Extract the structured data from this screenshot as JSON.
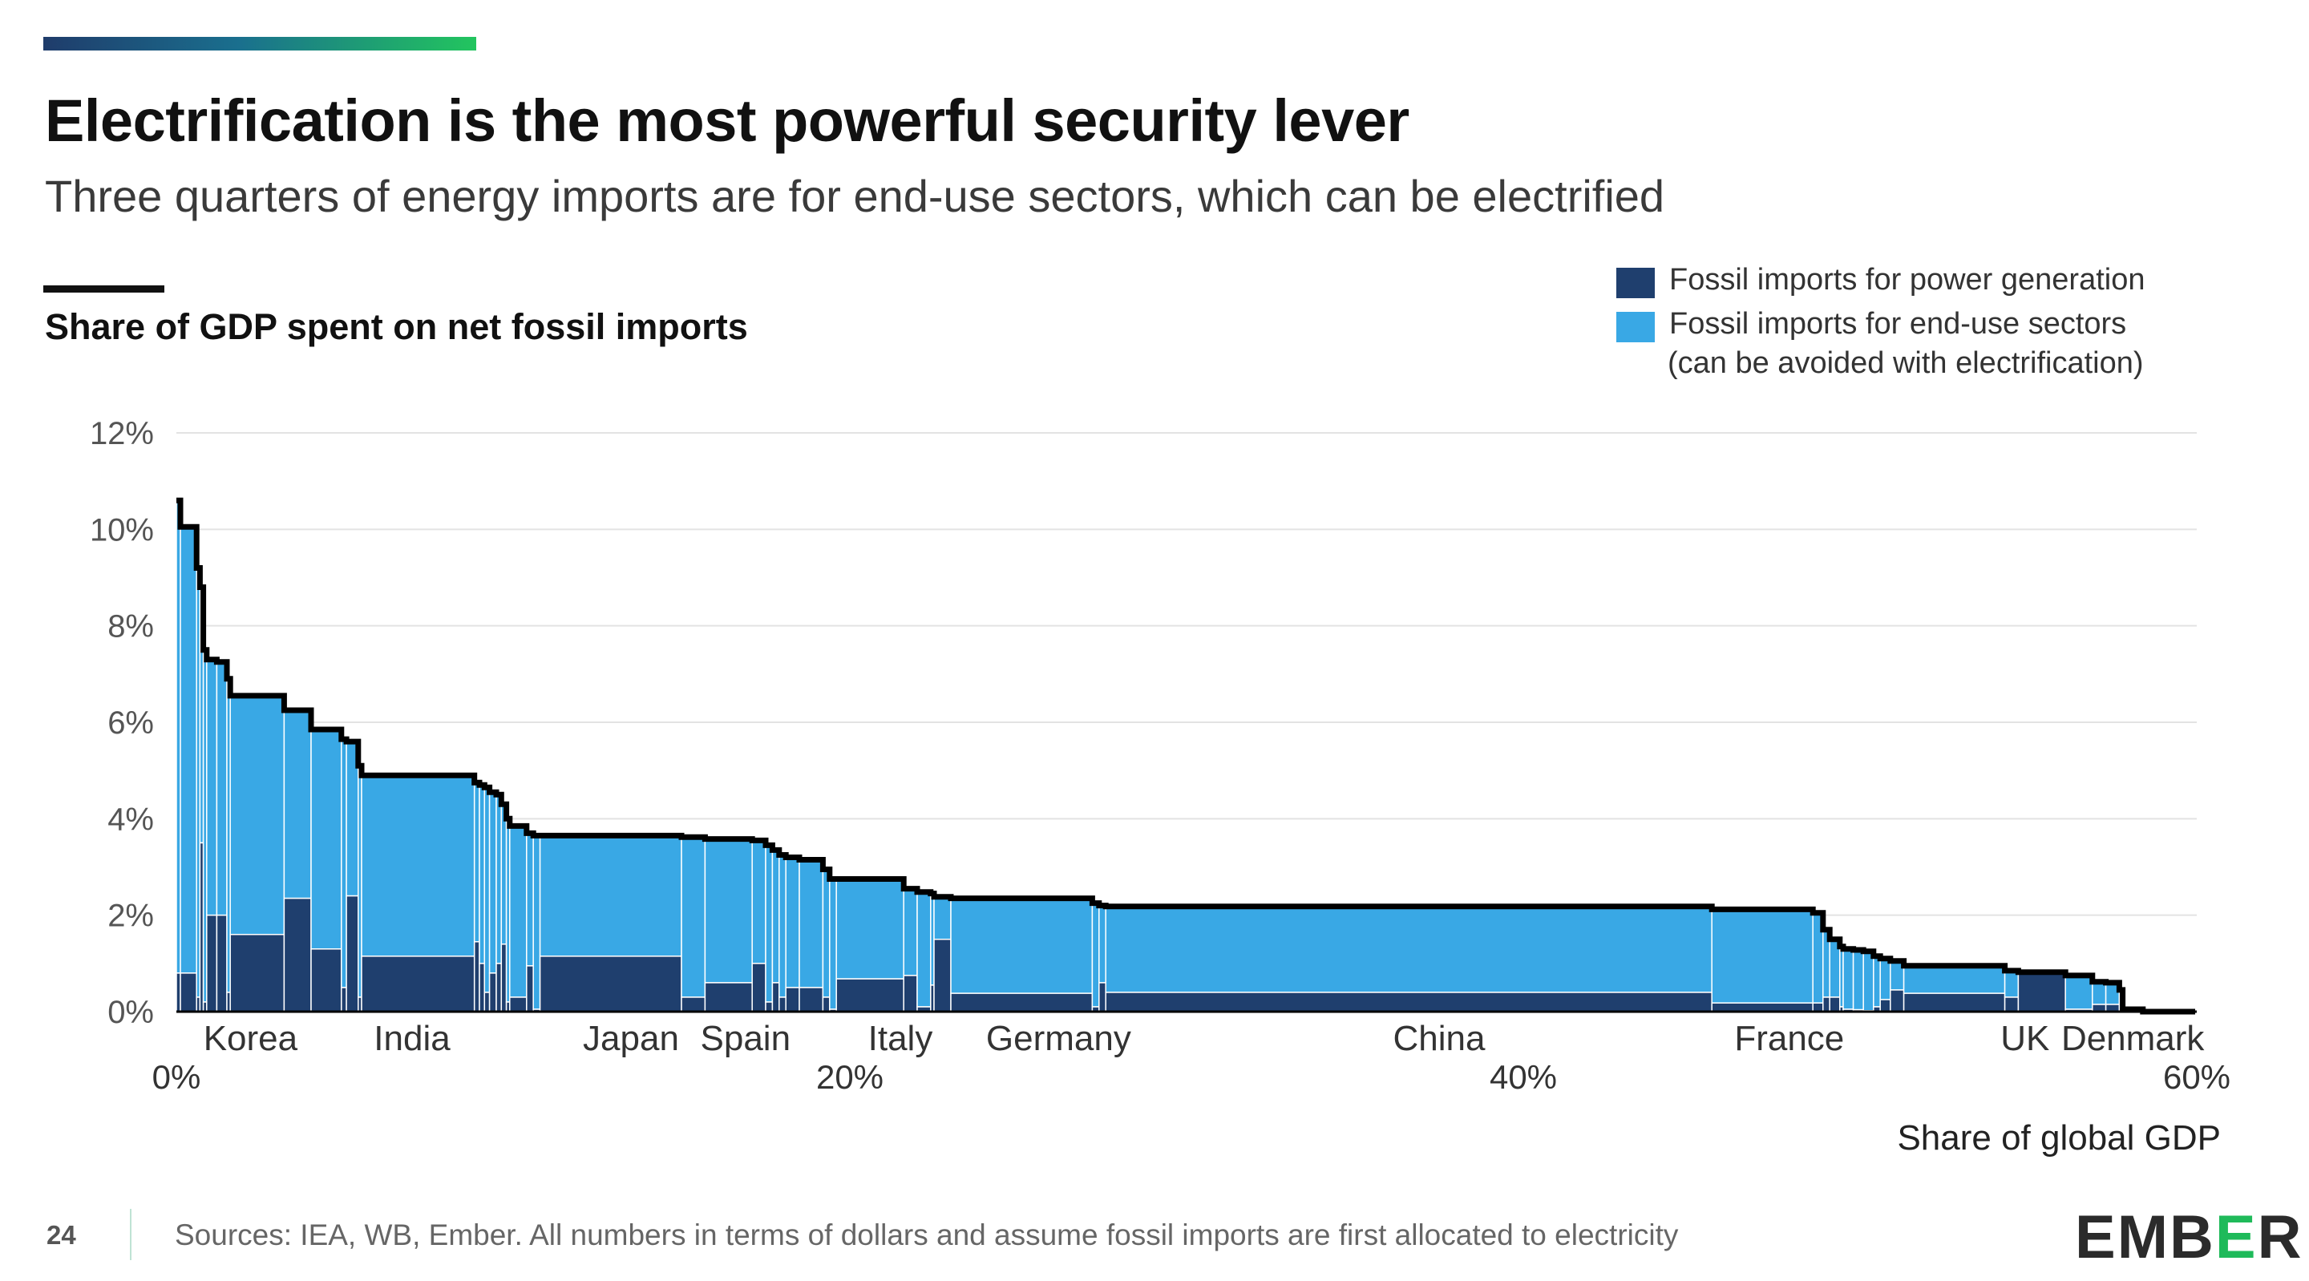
{
  "title": "Electrification is the most powerful security lever",
  "subtitle": "Three quarters of energy imports are for end-use sectors, which can be electrified",
  "chart_heading": "Share of GDP spent on net fossil imports",
  "legend": {
    "power_label": "Fossil imports for power generation",
    "enduse_label": "Fossil imports for end-use sectors",
    "enduse_note": "(can be avoided with electrification)"
  },
  "colors": {
    "power": "#1f3f6e",
    "enduse": "#39a8e5",
    "outline": "#000000",
    "grid": "#e3e3e3"
  },
  "footer": {
    "page_number": "24",
    "sources": "Sources: IEA, WB, Ember.  All numbers in terms of dollars and assume fossil imports are first allocated to electricity",
    "logo_left": "EMB",
    "logo_accent": "E",
    "logo_right": "R"
  },
  "chart_data": {
    "type": "bar",
    "subtype": "variable-width stacked bar (marimekko), sorted descending",
    "ylabel": "",
    "xlabel": "Share of global GDP",
    "ylim": [
      0,
      12
    ],
    "xlim": [
      0,
      60
    ],
    "yticks": [
      "0%",
      "2%",
      "4%",
      "6%",
      "8%",
      "10%",
      "12%"
    ],
    "xticks": [
      {
        "value": 0,
        "label": "0%"
      },
      {
        "value": 20,
        "label": "20%"
      },
      {
        "value": 40,
        "label": "40%"
      },
      {
        "value": 60,
        "label": "60%"
      }
    ],
    "country_labels": [
      {
        "x": 2.2,
        "label": "Korea"
      },
      {
        "x": 7.0,
        "label": "India"
      },
      {
        "x": 13.5,
        "label": "Japan"
      },
      {
        "x": 16.9,
        "label": "Spain"
      },
      {
        "x": 21.5,
        "label": "Italy"
      },
      {
        "x": 26.2,
        "label": "Germany"
      },
      {
        "x": 37.5,
        "label": "China"
      },
      {
        "x": 47.9,
        "label": "France"
      },
      {
        "x": 54.9,
        "label": "UK"
      },
      {
        "x": 58.1,
        "label": "Denmark"
      }
    ],
    "grid": true,
    "legend_position": "top-right",
    "series": [
      {
        "name": "Fossil imports for power generation",
        "key": "power"
      },
      {
        "name": "Fossil imports for end-use sectors",
        "key": "enduse"
      }
    ],
    "segments": [
      {
        "w": 0.12,
        "total": 10.6,
        "power": 0.8
      },
      {
        "w": 0.48,
        "total": 10.05,
        "power": 0.8
      },
      {
        "w": 0.1,
        "total": 9.2,
        "power": 0.3
      },
      {
        "w": 0.1,
        "total": 8.8,
        "power": 3.5
      },
      {
        "w": 0.1,
        "total": 7.5,
        "power": 0.2
      },
      {
        "w": 0.3,
        "total": 7.3,
        "power": 2.0
      },
      {
        "w": 0.3,
        "total": 7.25,
        "power": 2.0
      },
      {
        "w": 0.1,
        "total": 6.9,
        "power": 0.4
      },
      {
        "w": 1.6,
        "total": 6.55,
        "power": 1.6
      },
      {
        "w": 0.8,
        "total": 6.25,
        "power": 2.35
      },
      {
        "w": 0.9,
        "total": 5.85,
        "power": 1.3
      },
      {
        "w": 0.15,
        "total": 5.65,
        "power": 0.5
      },
      {
        "w": 0.35,
        "total": 5.6,
        "power": 2.4
      },
      {
        "w": 0.1,
        "total": 5.1,
        "power": 0.3
      },
      {
        "w": 3.35,
        "total": 4.9,
        "power": 1.15
      },
      {
        "w": 0.15,
        "total": 4.75,
        "power": 1.45
      },
      {
        "w": 0.15,
        "total": 4.7,
        "power": 1.0
      },
      {
        "w": 0.15,
        "total": 4.65,
        "power": 0.4
      },
      {
        "w": 0.2,
        "total": 4.55,
        "power": 0.8
      },
      {
        "w": 0.15,
        "total": 4.5,
        "power": 1.0
      },
      {
        "w": 0.15,
        "total": 4.3,
        "power": 1.4
      },
      {
        "w": 0.1,
        "total": 4.0,
        "power": 0.2
      },
      {
        "w": 0.5,
        "total": 3.85,
        "power": 0.3
      },
      {
        "w": 0.2,
        "total": 3.7,
        "power": 0.95
      },
      {
        "w": 0.2,
        "total": 3.65,
        "power": 0.05
      },
      {
        "w": 4.2,
        "total": 3.65,
        "power": 1.15
      },
      {
        "w": 0.7,
        "total": 3.62,
        "power": 0.3
      },
      {
        "w": 1.4,
        "total": 3.58,
        "power": 0.6
      },
      {
        "w": 0.4,
        "total": 3.55,
        "power": 1.0
      },
      {
        "w": 0.2,
        "total": 3.45,
        "power": 0.2
      },
      {
        "w": 0.2,
        "total": 3.35,
        "power": 0.6
      },
      {
        "w": 0.2,
        "total": 3.25,
        "power": 0.3
      },
      {
        "w": 0.4,
        "total": 3.2,
        "power": 0.5
      },
      {
        "w": 0.7,
        "total": 3.15,
        "power": 0.5
      },
      {
        "w": 0.2,
        "total": 2.95,
        "power": 0.3
      },
      {
        "w": 0.2,
        "total": 2.75,
        "power": 0.05
      },
      {
        "w": 2.0,
        "total": 2.75,
        "power": 0.68
      },
      {
        "w": 0.4,
        "total": 2.55,
        "power": 0.75
      },
      {
        "w": 0.4,
        "total": 2.48,
        "power": 0.1
      },
      {
        "w": 0.1,
        "total": 2.45,
        "power": 0.55
      },
      {
        "w": 0.5,
        "total": 2.38,
        "power": 1.5
      },
      {
        "w": 4.2,
        "total": 2.35,
        "power": 0.38
      },
      {
        "w": 0.2,
        "total": 2.25,
        "power": 0.1
      },
      {
        "w": 0.2,
        "total": 2.2,
        "power": 0.6
      },
      {
        "w": 18.0,
        "total": 2.18,
        "power": 0.4
      },
      {
        "w": 3.0,
        "total": 2.12,
        "power": 0.18
      },
      {
        "w": 0.3,
        "total": 2.05,
        "power": 0.18
      },
      {
        "w": 0.2,
        "total": 1.7,
        "power": 0.3
      },
      {
        "w": 0.3,
        "total": 1.5,
        "power": 0.3
      },
      {
        "w": 0.1,
        "total": 1.35,
        "power": 0.1
      },
      {
        "w": 0.3,
        "total": 1.3,
        "power": 0.05
      },
      {
        "w": 0.3,
        "total": 1.28,
        "power": 0.04
      },
      {
        "w": 0.3,
        "total": 1.25,
        "power": 0.02
      },
      {
        "w": 0.2,
        "total": 1.15,
        "power": 0.1
      },
      {
        "w": 0.3,
        "total": 1.1,
        "power": 0.25
      },
      {
        "w": 0.4,
        "total": 1.05,
        "power": 0.45
      },
      {
        "w": 3.0,
        "total": 0.95,
        "power": 0.38
      },
      {
        "w": 0.4,
        "total": 0.85,
        "power": 0.3
      },
      {
        "w": 1.4,
        "total": 0.82,
        "power": 0.78
      },
      {
        "w": 0.8,
        "total": 0.75,
        "power": 0.05
      },
      {
        "w": 0.4,
        "total": 0.62,
        "power": 0.15
      },
      {
        "w": 0.4,
        "total": 0.6,
        "power": 0.15
      },
      {
        "w": 0.1,
        "total": 0.45,
        "power": 0.1
      },
      {
        "w": 0.6,
        "total": 0.05,
        "power": 0.02
      }
    ]
  }
}
